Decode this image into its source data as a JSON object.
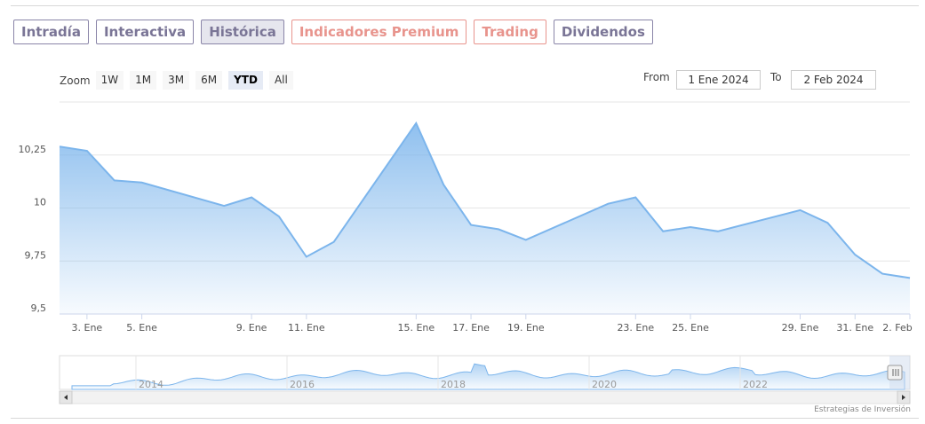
{
  "tabs": [
    {
      "label": "Intradía",
      "active": false,
      "premium": false
    },
    {
      "label": "Interactiva",
      "active": false,
      "premium": false
    },
    {
      "label": "Histórica",
      "active": true,
      "premium": false
    },
    {
      "label": "Indicadores Premium",
      "active": false,
      "premium": true
    },
    {
      "label": "Trading",
      "active": false,
      "premium": true
    },
    {
      "label": "Dividendos",
      "active": false,
      "premium": false
    }
  ],
  "zoom": {
    "label": "Zoom",
    "buttons": [
      "1W",
      "1M",
      "3M",
      "6M",
      "YTD",
      "All"
    ],
    "selected": "YTD"
  },
  "range": {
    "from_label": "From",
    "from_value": "1 Ene 2024",
    "to_label": "To",
    "to_value": "2 Feb 2024"
  },
  "credit": "Estrategias de Inversión",
  "colors": {
    "line": "#7cb5ec",
    "tab_border": "#8a85a8",
    "premium": "#e8948d"
  },
  "chart_data": {
    "type": "area",
    "title": "",
    "xlabel": "",
    "ylabel": "",
    "ylim": [
      9.5,
      10.5
    ],
    "y_ticks": [
      {
        "value": 9.5,
        "label": "9,5"
      },
      {
        "value": 9.75,
        "label": "9,75"
      },
      {
        "value": 10,
        "label": "10"
      },
      {
        "value": 10.25,
        "label": "10,25"
      }
    ],
    "x_ticks": [
      "3. Ene",
      "5. Ene",
      "9. Ene",
      "11. Ene",
      "15. Ene",
      "17. Ene",
      "19. Ene",
      "23. Ene",
      "25. Ene",
      "29. Ene",
      "31. Ene",
      "2. Feb"
    ],
    "x": [
      "2024-01-02",
      "2024-01-03",
      "2024-01-04",
      "2024-01-05",
      "2024-01-08",
      "2024-01-09",
      "2024-01-10",
      "2024-01-11",
      "2024-01-12",
      "2024-01-15",
      "2024-01-16",
      "2024-01-17",
      "2024-01-18",
      "2024-01-19",
      "2024-01-22",
      "2024-01-23",
      "2024-01-24",
      "2024-01-25",
      "2024-01-26",
      "2024-01-29",
      "2024-01-30",
      "2024-01-31",
      "2024-02-01",
      "2024-02-02"
    ],
    "values": [
      10.29,
      10.27,
      10.13,
      10.12,
      10.01,
      10.05,
      9.96,
      9.77,
      9.84,
      10.4,
      10.11,
      9.92,
      9.9,
      9.85,
      10.02,
      10.05,
      9.89,
      9.91,
      9.89,
      9.99,
      9.93,
      9.78,
      9.69,
      9.67
    ],
    "grid": true,
    "navigator": {
      "year_labels": [
        "2014",
        "2016",
        "2018",
        "2020",
        "2022"
      ]
    }
  }
}
